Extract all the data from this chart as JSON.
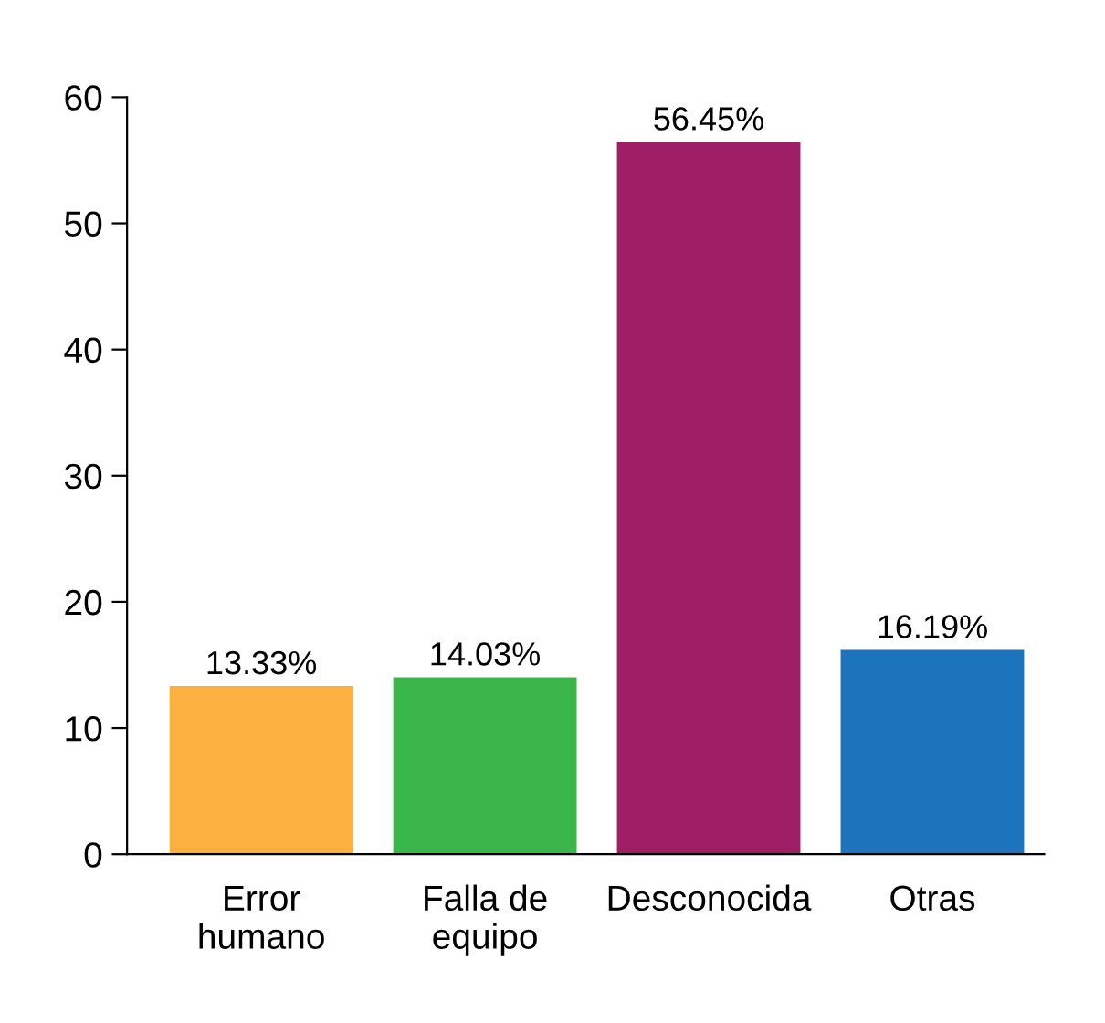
{
  "chart_data": {
    "type": "bar",
    "categories": [
      "Error\nhumano",
      "Falla de\nequipo",
      "Desconocida",
      "Otras"
    ],
    "values": [
      13.33,
      14.03,
      56.45,
      16.19
    ],
    "value_labels": [
      "13.33%",
      "14.03%",
      "56.45%",
      "16.19%"
    ],
    "colors": [
      "#fbb040",
      "#39b54a",
      "#9e1f63",
      "#1c75bc"
    ],
    "ylim": [
      0,
      60
    ],
    "yticks": [
      0,
      10,
      20,
      30,
      40,
      50,
      60
    ],
    "grid": false
  }
}
